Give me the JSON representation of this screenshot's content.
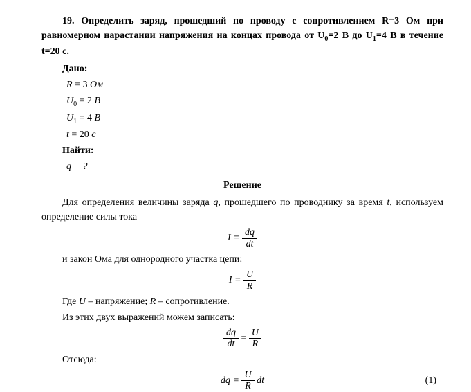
{
  "problem": {
    "number": "19.",
    "statement": "Определить заряд, прошедший по проводу с сопротивлением R=3 Ом при равномерном нарастании напряжения на концах провода от U",
    "statement_part2": "=2 В до U",
    "statement_part3": "=4 В в течение t=20 с.",
    "sub0": "0",
    "sub1": "1"
  },
  "given": {
    "label": "Дано:",
    "line1_var": "R",
    "line1_eq": " = 3 ",
    "line1_unit": "Ом",
    "line2_var": "U",
    "line2_sub": "0",
    "line2_eq": " = 2 ",
    "line2_unit": "В",
    "line3_var": "U",
    "line3_sub": "1",
    "line3_eq": " = 4 ",
    "line3_unit": "В",
    "line4_var": "t",
    "line4_eq": " = 20 ",
    "line4_unit": "с"
  },
  "find": {
    "label": "Найти:",
    "line1": "q − ?"
  },
  "solution": {
    "header": "Решение",
    "para1_a": "Для определения величины заряда ",
    "para1_var1": "q",
    "para1_b": ", прошедшего по проводнику за время ",
    "para1_var2": "t",
    "para1_c": ", используем определение силы тока",
    "formula1_lhs": "I = ",
    "formula1_num": "dq",
    "formula1_den": "dt",
    "para2": "и закон Ома для однородного участка цепи:",
    "formula2_lhs": "I = ",
    "formula2_num": "U",
    "formula2_den": "R",
    "para3_a": "Где ",
    "para3_var1": "U",
    "para3_b": " – напряжение; ",
    "para3_var2": "R",
    "para3_c": " – сопротивление.",
    "para4": "Из этих двух выражений можем записать:",
    "formula3_num1": "dq",
    "formula3_den1": "dt",
    "formula3_eq": " = ",
    "formula3_num2": "U",
    "formula3_den2": "R",
    "para5": "Отсюда:",
    "formula4_lhs": "dq = ",
    "formula4_num": "U",
    "formula4_den": "R",
    "formula4_rhs": " dt",
    "formula4_number": "(1)"
  }
}
